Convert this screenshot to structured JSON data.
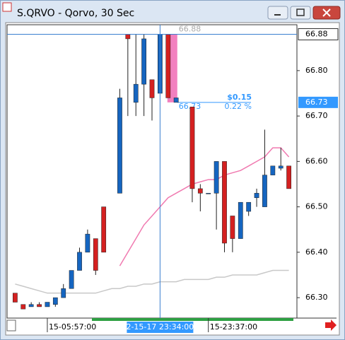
{
  "chart_data": {
    "type": "candlestick",
    "title": "S.QRVO - Qorvo, 30 Sec",
    "open": [
      66.31,
      66.285,
      66.28,
      66.285,
      66.28,
      66.285,
      66.3,
      66.32,
      66.36,
      66.4,
      66.43,
      66.5,
      null,
      66.53,
      66.88,
      66.73,
      66.77,
      66.78,
      66.75,
      66.88,
      66.73,
      null,
      66.72,
      66.54,
      66.53,
      66.53,
      66.6,
      66.48,
      66.43,
      66.49,
      66.52,
      66.5,
      66.57,
      66.585,
      66.59
    ],
    "high": [
      66.31,
      66.285,
      66.29,
      66.29,
      66.29,
      66.3,
      66.33,
      66.36,
      66.41,
      66.45,
      66.43,
      66.5,
      null,
      66.76,
      66.88,
      66.88,
      66.88,
      66.78,
      66.88,
      66.88,
      66.74,
      null,
      66.72,
      66.55,
      66.53,
      66.6,
      66.6,
      66.48,
      66.51,
      66.51,
      66.54,
      66.67,
      66.59,
      66.63,
      66.59
    ],
    "low": [
      66.29,
      66.275,
      66.28,
      66.28,
      66.28,
      66.28,
      66.3,
      66.32,
      66.36,
      66.4,
      66.35,
      66.4,
      null,
      66.53,
      66.7,
      66.7,
      66.7,
      66.69,
      66.75,
      66.74,
      66.73,
      null,
      66.51,
      66.49,
      66.53,
      66.45,
      66.4,
      66.4,
      66.43,
      66.48,
      66.5,
      66.5,
      66.57,
      66.58,
      66.54
    ],
    "close": [
      66.29,
      66.275,
      66.285,
      66.28,
      66.29,
      66.3,
      66.32,
      66.36,
      66.4,
      66.44,
      66.36,
      66.4,
      null,
      66.74,
      66.87,
      66.77,
      66.87,
      66.74,
      66.88,
      66.74,
      66.74,
      null,
      66.54,
      66.53,
      66.53,
      66.6,
      66.42,
      66.43,
      66.51,
      66.51,
      66.53,
      66.57,
      66.59,
      66.59,
      66.54
    ],
    "up_color": "#1565c0",
    "down_color": "#d42020",
    "series": [
      {
        "color": "#f07ab0",
        "values": [
          null,
          null,
          null,
          null,
          null,
          null,
          null,
          null,
          null,
          null,
          null,
          null,
          null,
          66.37,
          66.4,
          66.43,
          66.46,
          66.48,
          66.5,
          66.52,
          66.53,
          66.54,
          66.55,
          66.555,
          66.56,
          66.56,
          66.57,
          66.575,
          66.58,
          66.59,
          66.6,
          66.61,
          66.63,
          66.63,
          66.61
        ]
      },
      {
        "color": "#c8c8c8",
        "values": [
          66.33,
          66.325,
          66.32,
          66.315,
          66.31,
          66.31,
          66.31,
          66.31,
          66.31,
          66.31,
          66.31,
          66.315,
          66.32,
          66.32,
          66.325,
          66.325,
          66.33,
          66.33,
          66.335,
          66.335,
          66.335,
          66.34,
          66.34,
          66.34,
          66.34,
          66.345,
          66.345,
          66.35,
          66.35,
          66.35,
          66.35,
          66.355,
          66.36,
          66.36,
          66.36
        ]
      }
    ],
    "ylim": [
      66.255,
      66.901
    ],
    "yticks": [
      {
        "value": 66.3,
        "label": "66.30"
      },
      {
        "value": 66.4,
        "label": "66.40"
      },
      {
        "value": 66.5,
        "label": "66.50"
      },
      {
        "value": 66.6,
        "label": "66.60"
      },
      {
        "value": 66.7,
        "label": "66.70"
      },
      {
        "value": 66.8,
        "label": "66.80"
      }
    ],
    "xlim": [
      -1,
      35
    ],
    "xticks": [
      {
        "value": 4,
        "label": "15-05:57:00"
      },
      {
        "value": 24,
        "label": "15-23:37:00"
      }
    ],
    "crosshair": {
      "x": {
        "value": 18,
        "label": "2-15-17 23:34:00"
      },
      "price": {
        "value": 66.88,
        "label": "66.88"
      }
    },
    "measure": {
      "from": {
        "value": 66.88,
        "label": "66.88"
      },
      "to": {
        "value": 66.73,
        "label": "66.73"
      },
      "change": {
        "value": 0.15,
        "label": "$0.15"
      },
      "percent": {
        "value": 0.22,
        "label": "0.22 %"
      }
    }
  }
}
